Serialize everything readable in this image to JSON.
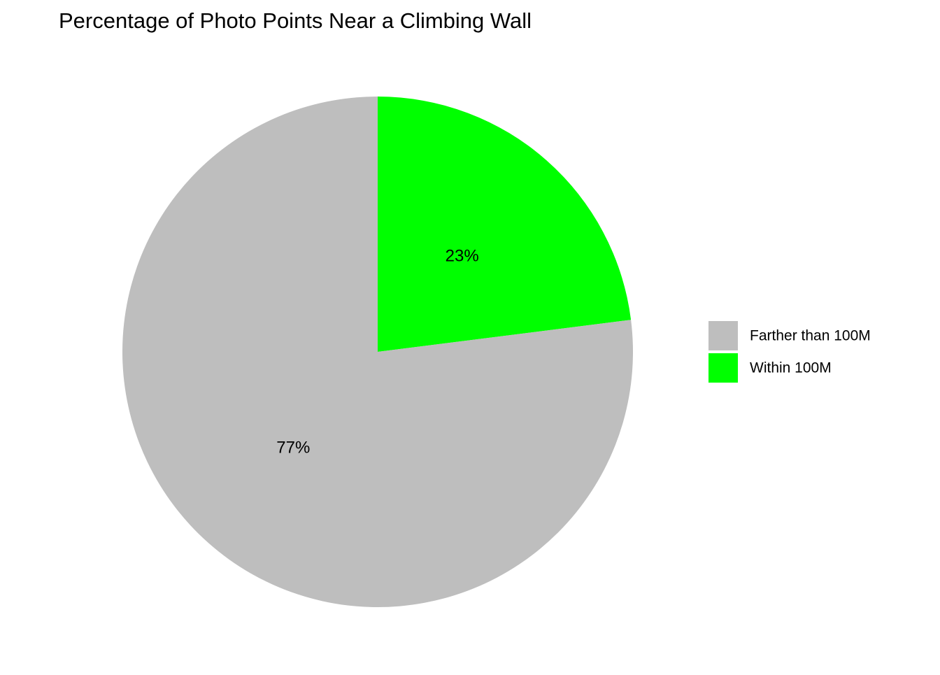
{
  "chart_data": {
    "type": "pie",
    "title": "Percentage of Photo Points Near a Climbing Wall",
    "slices": [
      {
        "name": "Within 100M",
        "value": 23,
        "label": "23%",
        "color": "#00ff00"
      },
      {
        "name": "Farther than 100M",
        "value": 77,
        "label": "77%",
        "color": "#bebebe"
      }
    ],
    "legend": {
      "position": "right",
      "items": [
        {
          "name": "Farther than 100M",
          "color": "#bebebe"
        },
        {
          "name": "Within 100M",
          "color": "#00ff00"
        }
      ]
    },
    "start_angle_deg": 0,
    "direction": "clockwise"
  }
}
